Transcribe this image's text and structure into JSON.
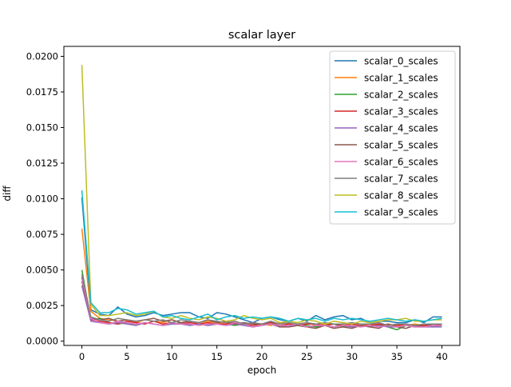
{
  "chart_data": {
    "type": "line",
    "title": "scalar layer",
    "xlabel": "epoch",
    "ylabel": "diff",
    "xlim": [
      -2,
      42
    ],
    "ylim": [
      -0.0003,
      0.0207
    ],
    "x_ticks": [
      0,
      5,
      10,
      15,
      20,
      25,
      30,
      35,
      40
    ],
    "y_ticks": [
      0.0,
      0.0025,
      0.005,
      0.0075,
      0.01,
      0.0125,
      0.015,
      0.0175,
      0.02
    ],
    "y_tick_labels": [
      "0.0000",
      "0.0025",
      "0.0050",
      "0.0075",
      "0.0100",
      "0.0125",
      "0.0150",
      "0.0175",
      "0.0200"
    ],
    "grid": false,
    "legend_position": "top-right",
    "x": [
      0,
      1,
      2,
      3,
      4,
      5,
      6,
      7,
      8,
      9,
      10,
      11,
      12,
      13,
      14,
      15,
      16,
      17,
      18,
      19,
      20,
      21,
      22,
      23,
      24,
      25,
      26,
      27,
      28,
      29,
      30,
      31,
      32,
      33,
      34,
      35,
      36,
      37,
      38,
      39,
      40
    ],
    "series": [
      {
        "name": "scalar_0_scales",
        "color": "#1f77b4",
        "values": [
          0.0101,
          0.0022,
          0.0019,
          0.0018,
          0.0024,
          0.0019,
          0.0017,
          0.0018,
          0.002,
          0.0018,
          0.0019,
          0.002,
          0.002,
          0.0017,
          0.0016,
          0.002,
          0.0019,
          0.0017,
          0.0015,
          0.0013,
          0.0016,
          0.0017,
          0.0015,
          0.0014,
          0.0016,
          0.0014,
          0.0018,
          0.0015,
          0.0017,
          0.0018,
          0.0015,
          0.0016,
          0.0013,
          0.0014,
          0.0014,
          0.0013,
          0.0013,
          0.0015,
          0.0013,
          0.0017,
          0.0017
        ]
      },
      {
        "name": "scalar_1_scales",
        "color": "#ff7f0e",
        "values": [
          0.0079,
          0.0021,
          0.0016,
          0.0015,
          0.0014,
          0.0015,
          0.0013,
          0.0015,
          0.0014,
          0.0013,
          0.0015,
          0.0013,
          0.0014,
          0.0013,
          0.0014,
          0.0013,
          0.0012,
          0.0014,
          0.0012,
          0.0013,
          0.0012,
          0.0011,
          0.0013,
          0.0012,
          0.0012,
          0.0013,
          0.0011,
          0.0012,
          0.0012,
          0.0011,
          0.0012,
          0.0011,
          0.0012,
          0.0011,
          0.0012,
          0.0011,
          0.0011,
          0.0012,
          0.0011,
          0.0011,
          0.0012
        ]
      },
      {
        "name": "scalar_2_scales",
        "color": "#2ca02c",
        "values": [
          0.005,
          0.0015,
          0.0016,
          0.0013,
          0.0012,
          0.0013,
          0.0011,
          0.0013,
          0.0012,
          0.0011,
          0.0012,
          0.0013,
          0.0011,
          0.0012,
          0.0011,
          0.0012,
          0.0012,
          0.0011,
          0.0012,
          0.001,
          0.0011,
          0.0012,
          0.001,
          0.0011,
          0.0012,
          0.0011,
          0.001,
          0.0011,
          0.0012,
          0.001,
          0.0011,
          0.001,
          0.0011,
          0.0012,
          0.001,
          0.0008,
          0.0011,
          0.001,
          0.0011,
          0.001,
          0.0011
        ]
      },
      {
        "name": "scalar_3_scales",
        "color": "#d62728",
        "values": [
          0.0045,
          0.0015,
          0.0014,
          0.0013,
          0.0012,
          0.0014,
          0.0013,
          0.0012,
          0.0014,
          0.0012,
          0.0013,
          0.0012,
          0.0013,
          0.0012,
          0.0013,
          0.0012,
          0.0012,
          0.0013,
          0.0012,
          0.0011,
          0.0012,
          0.0013,
          0.0011,
          0.0012,
          0.0011,
          0.0012,
          0.0012,
          0.0011,
          0.0012,
          0.0011,
          0.0012,
          0.0011,
          0.0011,
          0.0012,
          0.0011,
          0.0011,
          0.0012,
          0.0011,
          0.0011,
          0.0012,
          0.0011
        ]
      },
      {
        "name": "scalar_4_scales",
        "color": "#9467bd",
        "values": [
          0.0039,
          0.0014,
          0.0013,
          0.0012,
          0.0013,
          0.0012,
          0.0011,
          0.0013,
          0.0012,
          0.0011,
          0.0012,
          0.0012,
          0.0011,
          0.0012,
          0.0011,
          0.0012,
          0.0011,
          0.0012,
          0.0011,
          0.001,
          0.0011,
          0.0012,
          0.001,
          0.0011,
          0.0011,
          0.001,
          0.0011,
          0.0011,
          0.001,
          0.0011,
          0.001,
          0.0011,
          0.001,
          0.0011,
          0.001,
          0.001,
          0.0011,
          0.001,
          0.001,
          0.001,
          0.001
        ]
      },
      {
        "name": "scalar_5_scales",
        "color": "#8c564b",
        "values": [
          0.0042,
          0.0016,
          0.0015,
          0.0016,
          0.0014,
          0.0015,
          0.0014,
          0.0015,
          0.0016,
          0.0014,
          0.0015,
          0.0013,
          0.0014,
          0.0013,
          0.0015,
          0.0013,
          0.0014,
          0.0012,
          0.0013,
          0.0012,
          0.0012,
          0.0014,
          0.001,
          0.001,
          0.0011,
          0.001,
          0.0009,
          0.0011,
          0.0009,
          0.001,
          0.0009,
          0.0011,
          0.001,
          0.0009,
          0.0012,
          0.001,
          0.0009,
          0.0011,
          0.001,
          0.0012,
          0.0012
        ]
      },
      {
        "name": "scalar_6_scales",
        "color": "#e377c2",
        "values": [
          0.0044,
          0.0016,
          0.0013,
          0.0012,
          0.0014,
          0.0013,
          0.0012,
          0.0013,
          0.0012,
          0.0011,
          0.0013,
          0.0012,
          0.0012,
          0.0011,
          0.0012,
          0.0012,
          0.0011,
          0.0013,
          0.0012,
          0.001,
          0.0011,
          0.0012,
          0.0011,
          0.0011,
          0.0012,
          0.001,
          0.0011,
          0.0011,
          0.001,
          0.0011,
          0.0011,
          0.001,
          0.0011,
          0.001,
          0.0011,
          0.001,
          0.0011,
          0.001,
          0.001,
          0.0011,
          0.0011
        ]
      },
      {
        "name": "scalar_7_scales",
        "color": "#7f7f7f",
        "values": [
          0.0047,
          0.0017,
          0.0015,
          0.0014,
          0.0016,
          0.0015,
          0.0014,
          0.0015,
          0.0014,
          0.0015,
          0.0013,
          0.0015,
          0.0014,
          0.0013,
          0.0015,
          0.0014,
          0.0013,
          0.0014,
          0.0012,
          0.0013,
          0.0012,
          0.0014,
          0.0012,
          0.0013,
          0.0012,
          0.0013,
          0.0012,
          0.0013,
          0.0012,
          0.0012,
          0.0013,
          0.0012,
          0.0012,
          0.0013,
          0.0011,
          0.0012,
          0.0012,
          0.0011,
          0.0012,
          0.0012,
          0.0012
        ]
      },
      {
        "name": "scalar_8_scales",
        "color": "#bcbd22",
        "values": [
          0.0194,
          0.0026,
          0.0018,
          0.0018,
          0.0019,
          0.002,
          0.0018,
          0.0019,
          0.0021,
          0.0017,
          0.0016,
          0.0018,
          0.0016,
          0.0015,
          0.0017,
          0.0016,
          0.0014,
          0.0015,
          0.0018,
          0.0016,
          0.0015,
          0.0016,
          0.0013,
          0.0014,
          0.0013,
          0.0015,
          0.0014,
          0.0012,
          0.0014,
          0.0013,
          0.0012,
          0.0014,
          0.0013,
          0.0014,
          0.0015,
          0.0015,
          0.0016,
          0.0014,
          0.0014,
          0.0015,
          0.0015
        ]
      },
      {
        "name": "scalar_9_scales",
        "color": "#17becf",
        "values": [
          0.0106,
          0.0027,
          0.002,
          0.002,
          0.0023,
          0.0022,
          0.0019,
          0.002,
          0.0021,
          0.0017,
          0.0018,
          0.0016,
          0.0015,
          0.0017,
          0.0019,
          0.0015,
          0.0017,
          0.0018,
          0.0016,
          0.0017,
          0.0016,
          0.0017,
          0.0016,
          0.0014,
          0.0016,
          0.0015,
          0.0016,
          0.0014,
          0.0016,
          0.0015,
          0.0016,
          0.0015,
          0.0014,
          0.0015,
          0.0016,
          0.0015,
          0.0014,
          0.0015,
          0.0014,
          0.0015,
          0.0016
        ]
      }
    ]
  }
}
